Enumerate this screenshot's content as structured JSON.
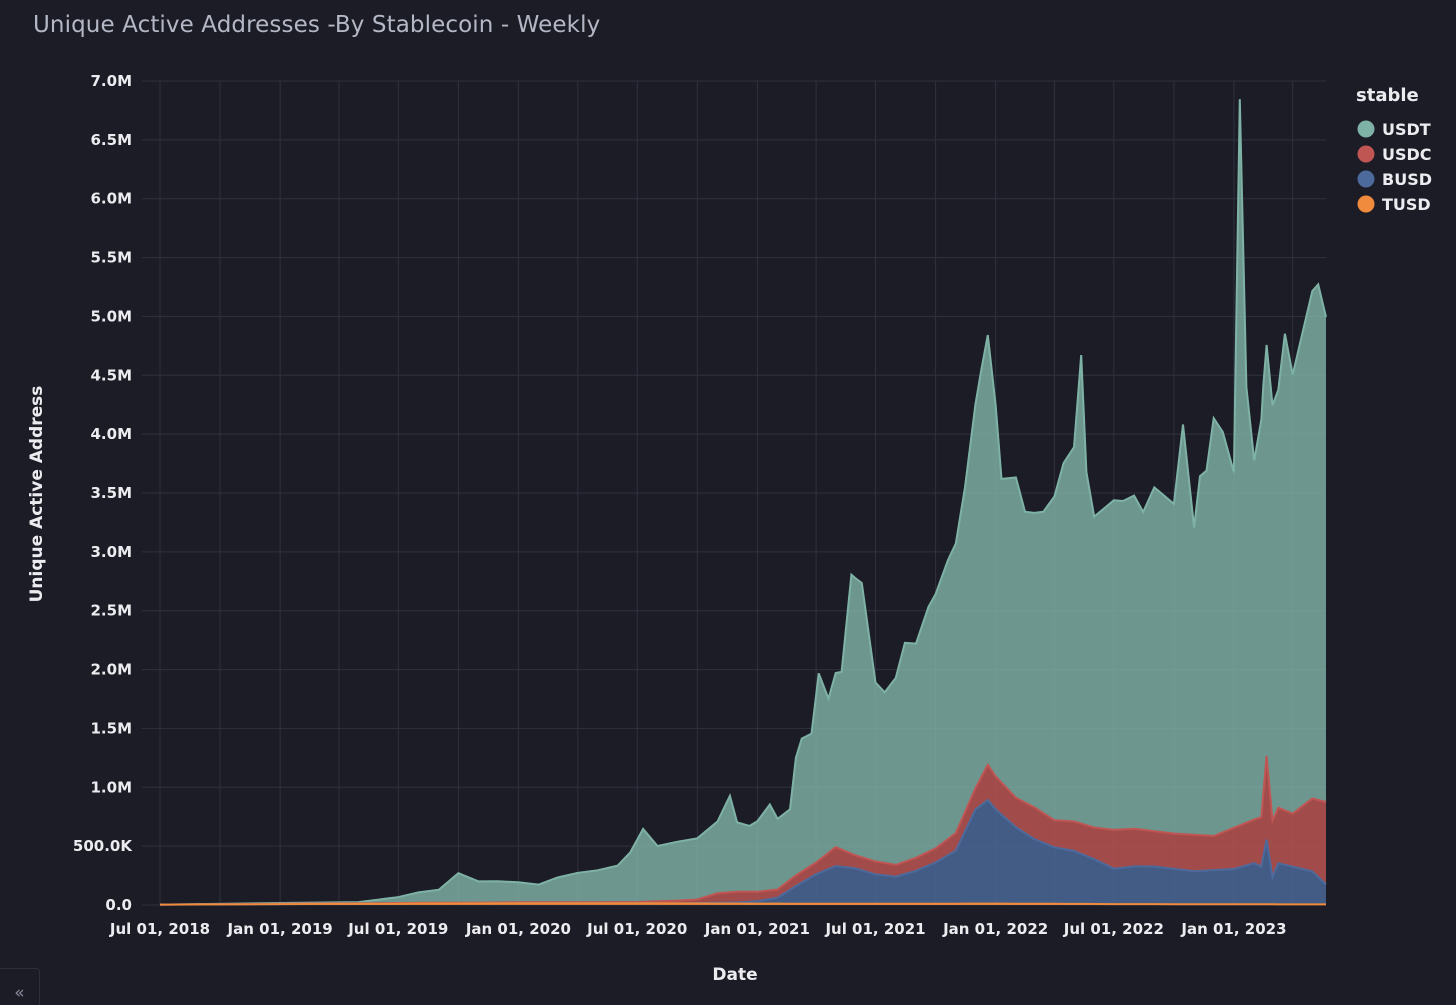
{
  "header": {
    "title": "Unique Active Addresses -By Stablecoin - Weekly"
  },
  "sidebar_toggle": {
    "icon": "chevron-double-left-icon",
    "glyph": "«"
  },
  "chart_data": {
    "type": "area",
    "stacked": true,
    "title": "Unique Active Addresses -By Stablecoin - Weekly",
    "xlabel": "Date",
    "ylabel": "Unique Active Address",
    "x_tick_labels": [
      "Jul 01, 2018",
      "Jan 01, 2019",
      "Jul 01, 2019",
      "Jan 01, 2020",
      "Jul 01, 2020",
      "Jan 01, 2021",
      "Jul 01, 2021",
      "Jan 01, 2022",
      "Jul 01, 2022",
      "Jan 01, 2023"
    ],
    "y_tick_labels": [
      "0.0",
      "500.0K",
      "1.0M",
      "1.5M",
      "2.0M",
      "2.5M",
      "3.0M",
      "3.5M",
      "4.0M",
      "4.5M",
      "5.0M",
      "5.5M",
      "6.0M",
      "6.5M",
      "7.0M"
    ],
    "ylim": [
      0,
      7000000
    ],
    "xlim": [
      "2018-07-01",
      "2023-05-22"
    ],
    "grid": true,
    "legend": {
      "title": "stable",
      "placement": "top-right"
    },
    "series": [
      {
        "name": "TUSD",
        "color": "#f08a3c",
        "x": [
          "2018-07-01",
          "2019-01-01",
          "2019-07-01",
          "2020-01-01",
          "2020-07-01",
          "2021-01-01",
          "2021-07-01",
          "2022-01-01",
          "2022-07-01",
          "2023-01-01",
          "2023-05-22"
        ],
        "values": [
          3000,
          8000,
          12000,
          15000,
          15000,
          12000,
          10000,
          12000,
          8000,
          6000,
          5000
        ]
      },
      {
        "name": "BUSD",
        "color": "#4c6a9c",
        "x": [
          "2018-07-01",
          "2020-05-01",
          "2020-09-01",
          "2020-12-01",
          "2021-01-01",
          "2021-02-01",
          "2021-03-01",
          "2021-04-01",
          "2021-05-01",
          "2021-06-01",
          "2021-07-01",
          "2021-08-01",
          "2021-09-01",
          "2021-10-01",
          "2021-11-01",
          "2021-12-01",
          "2021-12-20",
          "2022-01-01",
          "2022-02-01",
          "2022-03-01",
          "2022-04-01",
          "2022-05-01",
          "2022-06-01",
          "2022-07-01",
          "2022-08-01",
          "2022-09-01",
          "2022-10-01",
          "2022-11-01",
          "2022-12-01",
          "2023-01-01",
          "2023-02-01",
          "2023-02-12",
          "2023-02-20",
          "2023-03-01",
          "2023-03-10",
          "2023-04-01",
          "2023-05-01",
          "2023-05-22"
        ],
        "values": [
          0,
          0,
          0,
          10000,
          20000,
          50000,
          150000,
          250000,
          320000,
          300000,
          250000,
          230000,
          280000,
          350000,
          450000,
          800000,
          880000,
          800000,
          650000,
          550000,
          480000,
          450000,
          380000,
          300000,
          320000,
          320000,
          300000,
          280000,
          290000,
          300000,
          350000,
          320000,
          550000,
          230000,
          350000,
          320000,
          280000,
          170000
        ]
      },
      {
        "name": "USDC",
        "color": "#c05654",
        "x": [
          "2018-07-01",
          "2019-07-01",
          "2020-07-01",
          "2020-10-01",
          "2020-11-01",
          "2020-12-01",
          "2021-01-01",
          "2021-02-01",
          "2021-03-01",
          "2021-04-01",
          "2021-05-01",
          "2021-06-01",
          "2021-07-01",
          "2021-08-01",
          "2021-09-01",
          "2021-10-01",
          "2021-11-01",
          "2021-12-01",
          "2021-12-20",
          "2022-01-01",
          "2022-02-01",
          "2022-03-01",
          "2022-04-01",
          "2022-05-01",
          "2022-06-01",
          "2022-07-01",
          "2022-08-01",
          "2022-09-01",
          "2022-10-01",
          "2022-11-01",
          "2022-12-01",
          "2023-01-01",
          "2023-02-01",
          "2023-02-12",
          "2023-02-20",
          "2023-03-01",
          "2023-04-01",
          "2023-05-01",
          "2023-05-22"
        ],
        "values": [
          0,
          5000,
          10000,
          30000,
          80000,
          90000,
          80000,
          70000,
          90000,
          100000,
          160000,
          110000,
          110000,
          100000,
          110000,
          120000,
          150000,
          180000,
          300000,
          280000,
          250000,
          270000,
          230000,
          250000,
          270000,
          330000,
          320000,
          300000,
          300000,
          310000,
          290000,
          350000,
          370000,
          420000,
          710000,
          480000,
          450000,
          620000,
          700000
        ]
      },
      {
        "name": "USDT",
        "color": "#7fb2a6",
        "x": [
          "2018-07-01",
          "2019-05-01",
          "2019-06-01",
          "2019-07-01",
          "2019-08-01",
          "2019-09-01",
          "2019-10-01",
          "2019-11-01",
          "2019-12-01",
          "2020-01-01",
          "2020-02-01",
          "2020-03-01",
          "2020-04-01",
          "2020-05-01",
          "2020-06-01",
          "2020-06-20",
          "2020-07-10",
          "2020-08-01",
          "2020-09-01",
          "2020-10-01",
          "2020-11-01",
          "2020-11-20",
          "2020-12-01",
          "2020-12-20",
          "2021-01-01",
          "2021-01-20",
          "2021-02-01",
          "2021-02-20",
          "2021-03-01",
          "2021-03-10",
          "2021-03-25",
          "2021-04-05",
          "2021-04-20",
          "2021-05-01",
          "2021-05-10",
          "2021-05-25",
          "2021-06-10",
          "2021-07-01",
          "2021-07-15",
          "2021-08-01",
          "2021-08-15",
          "2021-09-01",
          "2021-09-20",
          "2021-10-01",
          "2021-10-20",
          "2021-11-01",
          "2021-11-15",
          "2021-12-01",
          "2021-12-10",
          "2021-12-20",
          "2022-01-01",
          "2022-01-10",
          "2022-02-01",
          "2022-02-15",
          "2022-03-01",
          "2022-03-15",
          "2022-04-01",
          "2022-04-15",
          "2022-05-01",
          "2022-05-12",
          "2022-05-20",
          "2022-06-01",
          "2022-07-01",
          "2022-07-15",
          "2022-08-01",
          "2022-08-15",
          "2022-09-01",
          "2022-10-01",
          "2022-10-15",
          "2022-11-01",
          "2022-11-10",
          "2022-11-20",
          "2022-12-01",
          "2022-12-15",
          "2023-01-01",
          "2023-01-10",
          "2023-01-20",
          "2023-02-01",
          "2023-02-15",
          "2023-03-01",
          "2023-03-10",
          "2023-03-20",
          "2023-04-01",
          "2023-04-15",
          "2023-05-01",
          "2023-05-10",
          "2023-05-22"
        ],
        "values": [
          0,
          10000,
          30000,
          50000,
          90000,
          110000,
          250000,
          180000,
          180000,
          170000,
          150000,
          210000,
          250000,
          270000,
          310000,
          420000,
          620000,
          470000,
          500000,
          520000,
          610000,
          820000,
          590000,
          560000,
          600000,
          730000,
          600000,
          600000,
          1000000,
          1130000,
          1120000,
          1590000,
          1310000,
          1480000,
          1510000,
          2370000,
          2330000,
          1520000,
          1450000,
          1590000,
          1860000,
          1820000,
          2080000,
          2160000,
          2370000,
          2460000,
          2760000,
          3260000,
          3460000,
          3650000,
          3150000,
          2580000,
          2720000,
          2470000,
          2500000,
          2560000,
          2750000,
          3040000,
          3180000,
          3980000,
          3000000,
          2640000,
          2800000,
          2790000,
          2830000,
          2700000,
          2920000,
          2800000,
          3480000,
          2610000,
          3050000,
          3100000,
          3550000,
          3400000,
          3020000,
          6170000,
          3700000,
          3050000,
          3470000,
          3530000,
          3550000,
          4050000,
          3730000,
          4000000,
          4310000,
          4380000,
          4120000
        ]
      }
    ]
  }
}
